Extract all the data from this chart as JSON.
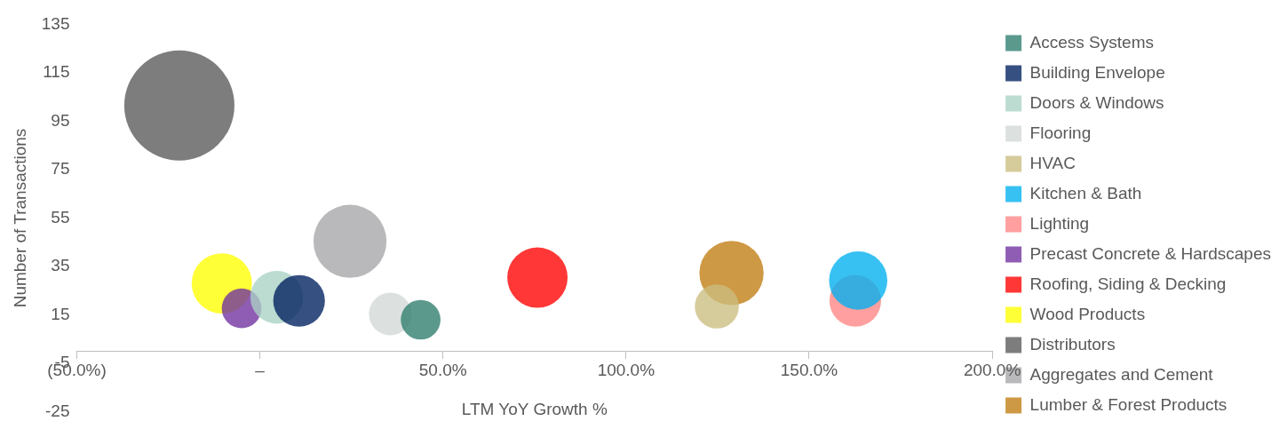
{
  "chart_data": {
    "type": "bubble",
    "xlabel": "LTM YoY Growth %",
    "ylabel": "Number of Transactions",
    "xlim": [
      -50,
      200
    ],
    "xticks": [
      {
        "value": -50,
        "label": "(50.0%)"
      },
      {
        "value": 0,
        "label": "–"
      },
      {
        "value": 50,
        "label": "50.0%"
      },
      {
        "value": 100,
        "label": "100.0%"
      },
      {
        "value": 150,
        "label": "150.0%"
      },
      {
        "value": 200,
        "label": "200.0%"
      }
    ],
    "ylim": [
      -25,
      135
    ],
    "yticks": [
      -25,
      -5,
      15,
      35,
      55,
      75,
      95,
      115,
      135
    ],
    "grid": false,
    "legend": "right",
    "series": [
      {
        "name": "Access Systems",
        "color": "#2e7d6e",
        "x": [
          43.9
        ],
        "values": [
          13
        ],
        "sizes": [
          0.13
        ]
      },
      {
        "name": "Building Envelope",
        "color": "#002060",
        "x": [
          10.7
        ],
        "values": [
          20.8
        ],
        "sizes": [
          0.22
        ]
      },
      {
        "name": "Doors & Windows",
        "color": "#a9d1c4",
        "x": [
          4.6
        ],
        "values": [
          22.3
        ],
        "sizes": [
          0.23
        ]
      },
      {
        "name": "Flooring",
        "color": "#d3d9d6",
        "x": [
          35.6
        ],
        "values": [
          15.4
        ],
        "sizes": [
          0.15
        ]
      },
      {
        "name": "HVAC",
        "color": "#cbbd80",
        "x": [
          124.8
        ],
        "values": [
          18.5
        ],
        "sizes": [
          0.16
        ]
      },
      {
        "name": "Kitchen & Bath",
        "color": "#00b0f0",
        "x": [
          163.4
        ],
        "values": [
          29.2
        ],
        "sizes": [
          0.28
        ]
      },
      {
        "name": "Lighting",
        "color": "#ff8585",
        "x": [
          162.6
        ],
        "values": [
          20.8
        ],
        "sizes": [
          0.22
        ]
      },
      {
        "name": "Precast Concrete & Hardscapes",
        "color": "#7030a0",
        "x": [
          -5
        ],
        "values": [
          17.7
        ],
        "sizes": [
          0.13
        ]
      },
      {
        "name": "Roofing, Siding & Decking",
        "color": "#ff0000",
        "x": [
          75.8
        ],
        "values": [
          30.4
        ],
        "sizes": [
          0.3
        ]
      },
      {
        "name": "Wood Products",
        "color": "#ffff00",
        "x": [
          -10.4
        ],
        "values": [
          28
        ],
        "sizes": [
          0.3
        ]
      },
      {
        "name": "Distributors",
        "color": "#595959",
        "x": [
          -22
        ],
        "values": [
          101.5
        ],
        "sizes": [
          1
        ]
      },
      {
        "name": "Aggregates and Cement",
        "color": "#a6a6a8",
        "x": [
          24.6
        ],
        "values": [
          45.4
        ],
        "sizes": [
          0.44
        ]
      },
      {
        "name": "Lumber & Forest Products",
        "color": "#c07d10",
        "x": [
          128.8
        ],
        "values": [
          32.3
        ],
        "sizes": [
          0.34
        ]
      }
    ]
  }
}
